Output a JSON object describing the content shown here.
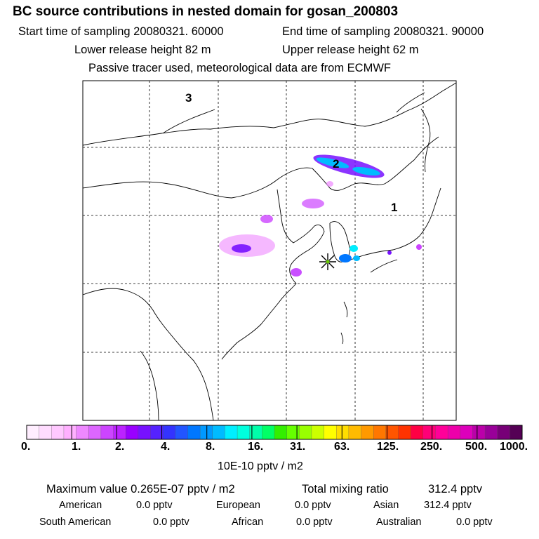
{
  "header": {
    "title": "BC  source contributions in nested domain for gosan_200803",
    "start_time": "Start time of sampling 20080321. 60000",
    "end_time": "End time of sampling 20080321. 90000",
    "lower_release": "Lower release height   82 m",
    "upper_release": "Upper release height   62 m",
    "tracer_note": "Passive tracer used, meteorological data are from ECMWF"
  },
  "map": {
    "region_labels": [
      "1",
      "2",
      "3"
    ],
    "receptor_marker": "receptor-star"
  },
  "colorbar": {
    "tick_labels": [
      "0.",
      "1.",
      "2.",
      "4.",
      "8.",
      "16.",
      "31.",
      "63.",
      "125.",
      "250.",
      "500.",
      "1000."
    ],
    "unit": "10E-10 pptv / m2",
    "colors": [
      "#ffeeff",
      "#ffdcff",
      "#ffc8ff",
      "#ffb0ff",
      "#ee88ff",
      "#dd66ff",
      "#cc44ff",
      "#bb22ff",
      "#9900ff",
      "#7711ff",
      "#5522ff",
      "#3333ff",
      "#2255ff",
      "#0077ff",
      "#0099ff",
      "#00bbff",
      "#00eeff",
      "#00ffdd",
      "#00ffaa",
      "#00ff66",
      "#33ee00",
      "#66ff00",
      "#99ff00",
      "#ccff00",
      "#ffff00",
      "#ffdd00",
      "#ffbb00",
      "#ff9900",
      "#ff7700",
      "#ff5500",
      "#ff3300",
      "#ff0044",
      "#ff0077",
      "#ff0099",
      "#ee00aa",
      "#dd00bb",
      "#bb00aa",
      "#990099",
      "#770077",
      "#550055"
    ]
  },
  "stats": {
    "max_label": "Maximum value  0.265E-07 pptv / m2",
    "total_label": "Total mixing ratio",
    "total_value": "312.4 pptv",
    "regions": [
      {
        "name": "American",
        "value": "0.0 pptv"
      },
      {
        "name": "European",
        "value": "0.0 pptv"
      },
      {
        "name": "Asian",
        "value": "312.4 pptv"
      },
      {
        "name": "South American",
        "value": "0.0 pptv"
      },
      {
        "name": "African",
        "value": "0.0 pptv"
      },
      {
        "name": "Australian",
        "value": "0.0 pptv"
      }
    ]
  }
}
